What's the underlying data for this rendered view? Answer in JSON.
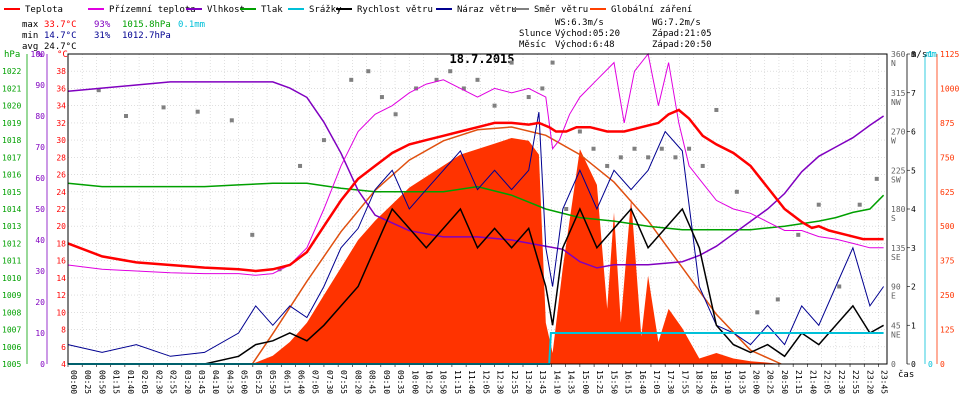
{
  "legend": [
    {
      "label": "Teplota",
      "color": "#ff0000"
    },
    {
      "label": "Přízemní teplota",
      "color": "#e000e0"
    },
    {
      "label": "Vlhkost",
      "color": "#8000c0"
    },
    {
      "label": "Tlak",
      "color": "#00a000"
    },
    {
      "label": "Srážky",
      "color": "#00c0d8"
    },
    {
      "label": "Rychlost větru",
      "color": "#000000"
    },
    {
      "label": "Náraz větru",
      "color": "#000090"
    },
    {
      "label": "Směr větru",
      "color": "#808080"
    },
    {
      "label": "Globální záření",
      "color": "#ff4000"
    }
  ],
  "stats": {
    "max_label": "max",
    "max_temp": "33.7°C",
    "max_hum": "93%",
    "max_press": "1015.8hPa",
    "rain": "0.1mm",
    "min_label": "min",
    "min_temp": "14.7°C",
    "min_hum": "31%",
    "min_press": "1012.7hPa",
    "avg_label": "avg",
    "avg_temp": "24.7°C"
  },
  "wind_info": {
    "ws": "WS:6.3m/s",
    "wg": "WG:7.2m/s"
  },
  "sun": {
    "label": "Slunce",
    "rise": "Východ:05:20",
    "set": "Západ:21:05"
  },
  "moon": {
    "label": "Měsíc",
    "rise": "Východ:6:48",
    "set": "Západ:20:50"
  },
  "colors": {
    "temp": "#ff0000",
    "ground": "#e000e0",
    "hum": "#8000c0",
    "press": "#00a000",
    "rain": "#00c0d8",
    "wind": "#000000",
    "gust": "#000090",
    "dir": "#808080",
    "rad": "#ff3300",
    "clear": "#e05010"
  },
  "chart_data": {
    "type": "line",
    "title": "18.7.2015",
    "xlabel": "čas",
    "x_ticks": [
      "00:00",
      "00:25",
      "00:50",
      "01:15",
      "01:40",
      "02:05",
      "02:30",
      "02:55",
      "03:20",
      "03:45",
      "04:10",
      "04:35",
      "05:00",
      "05:25",
      "05:50",
      "06:15",
      "06:40",
      "07:05",
      "07:30",
      "07:55",
      "08:20",
      "08:45",
      "09:10",
      "09:35",
      "10:00",
      "10:25",
      "10:50",
      "11:15",
      "11:40",
      "12:05",
      "12:30",
      "12:55",
      "13:20",
      "13:45",
      "14:10",
      "14:35",
      "15:00",
      "15:25",
      "15:50",
      "16:15",
      "16:40",
      "17:05",
      "17:30",
      "17:55",
      "18:20",
      "18:45",
      "19:10",
      "19:35",
      "20:00",
      "20:25",
      "20:50",
      "21:15",
      "21:40",
      "22:05",
      "22:30",
      "22:55",
      "23:20",
      "23:45"
    ],
    "axes": {
      "pressure": {
        "unit": "hPa",
        "min": 1005,
        "max": 1023,
        "ticks": [
          "1005",
          "1006",
          "1007",
          "1008",
          "1009",
          "1010",
          "1011",
          "1012",
          "1013",
          "1014",
          "1015",
          "1016",
          "1017",
          "1018",
          "1019",
          "1020",
          "1021",
          "1022"
        ]
      },
      "humidity": {
        "unit": "%",
        "min": 0,
        "max": 100,
        "ticks": [
          "0",
          "10",
          "20",
          "30",
          "40",
          "50",
          "60",
          "70",
          "80",
          "90",
          "100"
        ]
      },
      "temperature": {
        "unit": "°C",
        "min": 4,
        "max": 40,
        "ticks": [
          "4",
          "6",
          "8",
          "10",
          "12",
          "14",
          "16",
          "18",
          "20",
          "22",
          "24",
          "26",
          "28",
          "30",
          "32",
          "34",
          "36",
          "38"
        ]
      },
      "wind_speed": {
        "unit": "m/s",
        "min": 0,
        "max": 8,
        "ticks": [
          "0",
          "1",
          "2",
          "3",
          "4",
          "5",
          "6",
          "7",
          "8"
        ]
      },
      "rain": {
        "unit": "mm",
        "min": 0,
        "max": 1,
        "ticks": [
          "0",
          "1"
        ]
      },
      "radiation": {
        "min": 0,
        "max": 1125,
        "ticks": [
          "0",
          "125",
          "250",
          "375",
          "500",
          "625",
          "750",
          "875",
          "1000",
          "1125"
        ]
      },
      "wind_dir": {
        "min": 0,
        "max": 360,
        "ticks": [
          {
            "v": "360",
            "d": "N"
          },
          {
            "v": "315",
            "d": "NW"
          },
          {
            "v": "270",
            "d": "W"
          },
          {
            "v": "225",
            "d": "SW"
          },
          {
            "v": "180",
            "d": "S"
          },
          {
            "v": "135",
            "d": "SE"
          },
          {
            "v": "90",
            "d": "E"
          },
          {
            "v": "45",
            "d": "NE"
          },
          {
            "v": "0",
            "d": ""
          }
        ]
      }
    },
    "series": {
      "temperature": {
        "name": "Teplota",
        "x": [
          0,
          1,
          2,
          3,
          4,
          5,
          5.5,
          6,
          6.5,
          7,
          7.5,
          8,
          8.5,
          9,
          9.5,
          10,
          10.5,
          11,
          11.5,
          12,
          12.5,
          13,
          13.5,
          13.8,
          14.1,
          14.3,
          14.6,
          14.9,
          15.3,
          15.8,
          16.3,
          16.8,
          17.3,
          17.6,
          17.9,
          18.2,
          18.6,
          19,
          19.5,
          20,
          20.5,
          21,
          21.5,
          21.8,
          22,
          22.3,
          22.8,
          23.3,
          23.9
        ],
        "y": [
          18,
          16.5,
          15.8,
          15.5,
          15.2,
          15,
          14.8,
          15,
          15.5,
          17,
          20,
          23,
          25.5,
          27,
          28.5,
          29.5,
          30,
          30.5,
          31,
          31.5,
          32,
          32,
          31.8,
          32,
          31.5,
          31,
          31,
          31.5,
          31.5,
          31,
          31,
          31.5,
          32,
          33,
          33.5,
          32.5,
          30.5,
          29.5,
          28.5,
          27,
          24.5,
          22,
          20.5,
          19.8,
          20,
          19.5,
          19,
          18.5,
          18.5
        ]
      },
      "ground_temp": {
        "name": "Přízemní teplota",
        "x": [
          0,
          1,
          2,
          3,
          4,
          5,
          5.5,
          6,
          6.5,
          7,
          7.5,
          8,
          8.5,
          9,
          9.5,
          10,
          10.5,
          11,
          11.5,
          12,
          12.5,
          13,
          13.5,
          14,
          14.2,
          14.4,
          14.7,
          15,
          15.5,
          16,
          16.3,
          16.6,
          17,
          17.3,
          17.6,
          17.9,
          18.2,
          18.6,
          19,
          19.5,
          20,
          20.5,
          21,
          21.5,
          22,
          22.5,
          23,
          23.5,
          23.9
        ],
        "y": [
          15.5,
          15,
          14.8,
          14.6,
          14.5,
          14.5,
          14.3,
          14.5,
          15.5,
          17.5,
          22,
          27,
          31,
          33,
          34,
          35.5,
          36.5,
          37,
          36,
          35,
          36,
          35.5,
          36,
          35,
          29,
          30,
          33,
          35,
          37,
          39,
          32,
          38,
          40,
          34,
          39,
          32,
          27,
          25,
          23,
          22,
          21.5,
          20.5,
          19.5,
          19.5,
          18.8,
          18.5,
          18,
          17.5,
          17.5
        ]
      },
      "humidity": {
        "name": "Vlhkost",
        "x": [
          0,
          1,
          2,
          3,
          4,
          5,
          6,
          6.5,
          7,
          7.5,
          8,
          8.5,
          9,
          10,
          11,
          12,
          13,
          13.5,
          14,
          14.5,
          15,
          15.5,
          16,
          17,
          18,
          18.5,
          19,
          19.5,
          20,
          20.5,
          21,
          21.5,
          22,
          22.5,
          23,
          23.5,
          23.9
        ],
        "y": [
          88,
          89,
          90,
          91,
          91,
          91,
          91,
          89,
          86,
          78,
          68,
          56,
          48,
          43,
          41,
          41,
          40,
          39,
          38,
          37,
          33,
          31,
          32,
          32,
          33,
          35,
          38,
          42,
          46,
          50,
          55,
          62,
          67,
          70,
          73,
          77,
          80
        ]
      },
      "pressure": {
        "name": "Tlak",
        "x": [
          0,
          1,
          2,
          3,
          4,
          5,
          6,
          7,
          8,
          9,
          10,
          11,
          12,
          13,
          14,
          15,
          16,
          17,
          18,
          19,
          20,
          21,
          22,
          22.5,
          23,
          23.5,
          23.9
        ],
        "y": [
          1015.5,
          1015.3,
          1015.3,
          1015.3,
          1015.3,
          1015.4,
          1015.5,
          1015.5,
          1015.2,
          1015,
          1015,
          1015,
          1015.3,
          1014.8,
          1014,
          1013.5,
          1013.3,
          1013,
          1012.8,
          1012.8,
          1012.8,
          1013,
          1013.3,
          1013.5,
          1013.8,
          1014,
          1014.8
        ]
      },
      "rain": {
        "name": "Srážky",
        "x": [
          0,
          14.1,
          14.15,
          23.9
        ],
        "y": [
          0,
          0,
          0.1,
          0.1
        ]
      },
      "wind_speed": {
        "name": "Rychlost větru",
        "x": [
          0,
          1,
          2,
          3,
          4,
          5,
          5.5,
          6,
          6.5,
          7,
          7.5,
          8,
          8.5,
          9,
          9.5,
          10,
          10.5,
          11,
          11.5,
          12,
          12.5,
          13,
          13.5,
          14,
          14.2,
          14.5,
          15,
          15.5,
          16,
          16.5,
          17,
          17.5,
          18,
          18.5,
          19,
          19.5,
          20,
          20.5,
          21,
          21.5,
          22,
          22.5,
          23,
          23.5,
          23.9
        ],
        "y": [
          0,
          0,
          0,
          0,
          0,
          0.2,
          0.5,
          0.6,
          0.8,
          0.6,
          1,
          1.5,
          2,
          3,
          4,
          3.5,
          3,
          3.5,
          4,
          3,
          3.5,
          3,
          3.5,
          2,
          1,
          3,
          4,
          3,
          3.5,
          4,
          3,
          3.5,
          4,
          3,
          1,
          0.5,
          0.3,
          0.5,
          0.2,
          0.8,
          0.5,
          1,
          1.5,
          0.8,
          1
        ]
      },
      "gust": {
        "name": "Náraz větru",
        "x": [
          0,
          1,
          2,
          3,
          4,
          5,
          5.5,
          6,
          6.5,
          7,
          7.5,
          8,
          8.5,
          9,
          9.5,
          10,
          10.5,
          11,
          11.5,
          12,
          12.5,
          13,
          13.5,
          13.8,
          14,
          14.2,
          14.5,
          15,
          15.5,
          16,
          16.5,
          17,
          17.5,
          18,
          18.5,
          19,
          19.5,
          20,
          20.5,
          21,
          21.5,
          22,
          22.5,
          23,
          23.5,
          23.9
        ],
        "y": [
          0.5,
          0.3,
          0.5,
          0.2,
          0.3,
          0.8,
          1.5,
          1,
          1.5,
          1.2,
          2,
          3,
          3.5,
          4.5,
          5,
          4,
          4.5,
          5,
          5.5,
          4.5,
          5,
          4.5,
          5,
          6.5,
          3,
          2,
          4,
          5,
          4,
          5,
          4.5,
          5,
          6,
          5.5,
          2,
          1,
          0.8,
          0.5,
          1,
          0.5,
          1.5,
          1,
          2,
          3,
          1.5,
          2
        ]
      },
      "radiation": {
        "name": "Globální záření",
        "x": [
          5.4,
          6,
          6.5,
          7,
          7.5,
          8,
          8.5,
          9,
          9.5,
          10,
          10.5,
          11,
          11.5,
          12,
          12.5,
          13,
          13.5,
          13.8,
          14,
          14.2,
          14.5,
          15,
          15.5,
          15.8,
          16,
          16.2,
          16.5,
          16.8,
          17,
          17.3,
          17.6,
          18,
          18.5,
          19,
          19.5,
          20,
          20.5,
          20.9
        ],
        "y": [
          0,
          30,
          80,
          150,
          250,
          350,
          450,
          520,
          580,
          640,
          680,
          720,
          760,
          780,
          800,
          820,
          810,
          760,
          150,
          40,
          350,
          780,
          650,
          200,
          550,
          150,
          600,
          100,
          320,
          80,
          200,
          130,
          20,
          40,
          20,
          10,
          5,
          0
        ]
      },
      "clear_sky_radiation": {
        "name": "",
        "x": [
          5.4,
          6,
          7,
          8,
          9,
          10,
          11,
          12,
          13,
          14,
          15,
          16,
          17,
          18,
          19,
          20,
          20.9
        ],
        "y": [
          0,
          110,
          300,
          480,
          630,
          740,
          810,
          850,
          860,
          830,
          760,
          660,
          520,
          350,
          180,
          50,
          0
        ]
      },
      "wind_direction": {
        "name": "Směr větru",
        "x": [
          0.9,
          1.7,
          2.8,
          3.8,
          4.8,
          5.4,
          6.2,
          6.8,
          7.5,
          8.3,
          8.8,
          9.2,
          9.6,
          10.2,
          10.8,
          11.2,
          11.6,
          12,
          12.5,
          13,
          13.5,
          13.9,
          14.2,
          14.6,
          15,
          15.4,
          15.8,
          16.2,
          16.6,
          17,
          17.4,
          17.8,
          18.2,
          18.6,
          19,
          19.6,
          20.2,
          20.8,
          21.4,
          22,
          22.6,
          23.2,
          23.7
        ],
        "y": [
          318,
          288,
          298,
          293,
          283,
          150,
          110,
          230,
          260,
          330,
          340,
          310,
          290,
          320,
          330,
          340,
          320,
          330,
          300,
          350,
          310,
          320,
          350,
          180,
          270,
          250,
          230,
          240,
          250,
          240,
          250,
          240,
          250,
          230,
          295,
          200,
          60,
          75,
          150,
          185,
          90,
          185,
          215
        ]
      }
    }
  }
}
